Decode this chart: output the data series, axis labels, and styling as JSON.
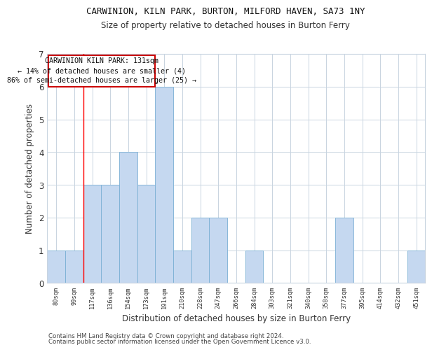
{
  "title1": "CARWINION, KILN PARK, BURTON, MILFORD HAVEN, SA73 1NY",
  "title2": "Size of property relative to detached houses in Burton Ferry",
  "xlabel": "Distribution of detached houses by size in Burton Ferry",
  "ylabel": "Number of detached properties",
  "footer1": "Contains HM Land Registry data © Crown copyright and database right 2024.",
  "footer2": "Contains public sector information licensed under the Open Government Licence v3.0.",
  "annotation_title": "CARWINION KILN PARK: 131sqm",
  "annotation_line1": "← 14% of detached houses are smaller (4)",
  "annotation_line2": "86% of semi-detached houses are larger (25) →",
  "bin_labels": [
    "80sqm",
    "99sqm",
    "117sqm",
    "136sqm",
    "154sqm",
    "173sqm",
    "191sqm",
    "210sqm",
    "228sqm",
    "247sqm",
    "266sqm",
    "284sqm",
    "303sqm",
    "321sqm",
    "340sqm",
    "358sqm",
    "377sqm",
    "395sqm",
    "414sqm",
    "432sqm",
    "451sqm"
  ],
  "bar_values": [
    1,
    1,
    3,
    3,
    4,
    3,
    6,
    1,
    2,
    2,
    0,
    1,
    0,
    0,
    0,
    0,
    2,
    0,
    0,
    0,
    1
  ],
  "bar_color": "#c5d8f0",
  "bar_edge_color": "#7aafd4",
  "grid_color": "#c8d4e0",
  "annotation_box_color": "#cc0000",
  "red_line_x": 1.5,
  "ylim": [
    0,
    7
  ],
  "yticks": [
    0,
    1,
    2,
    3,
    4,
    5,
    6,
    7
  ]
}
